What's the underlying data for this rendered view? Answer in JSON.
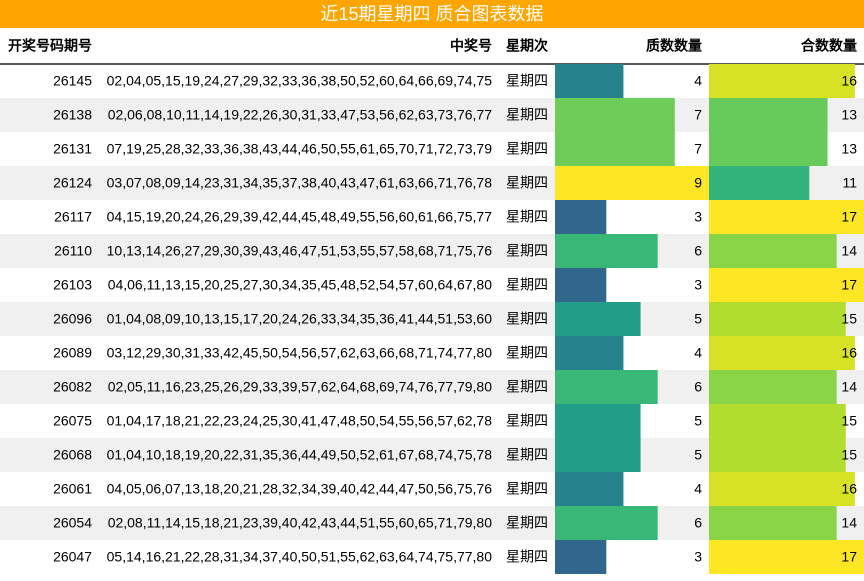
{
  "title": "近15期星期四 质合图表数据",
  "header": [
    "开奖号码期号",
    "中奖号",
    "星期次",
    "质数数量",
    "合数数量"
  ],
  "rows": [
    [
      "26145",
      "02,04,05,15,19,24,27,29,32,33,36,38,50,52,60,64,66,69,74,75",
      "星期四",
      4,
      16
    ],
    [
      "26138",
      "02,06,08,10,11,14,19,22,26,30,31,33,47,53,56,62,63,73,76,77",
      "星期四",
      7,
      13
    ],
    [
      "26131",
      "07,19,25,28,32,33,36,38,43,44,46,50,55,61,65,70,71,72,73,79",
      "星期四",
      7,
      13
    ],
    [
      "26124",
      "03,07,08,09,14,23,31,34,35,37,38,40,43,47,61,63,66,71,76,78",
      "星期四",
      9,
      11
    ],
    [
      "26117",
      "04,15,19,20,24,26,29,39,42,44,45,48,49,55,56,60,61,66,75,77",
      "星期四",
      3,
      17
    ],
    [
      "26110",
      "10,13,14,26,27,29,30,39,43,46,47,51,53,55,57,58,68,71,75,76",
      "星期四",
      6,
      14
    ],
    [
      "26103",
      "04,06,11,13,15,20,25,27,30,34,35,45,48,52,54,57,60,64,67,80",
      "星期四",
      3,
      17
    ],
    [
      "26096",
      "01,04,08,09,10,13,15,17,20,24,26,33,34,35,36,41,44,51,53,60",
      "星期四",
      5,
      15
    ],
    [
      "26089",
      "03,12,29,30,31,33,42,45,50,54,56,57,62,63,66,68,71,74,77,80",
      "星期四",
      4,
      16
    ],
    [
      "26082",
      "02,05,11,16,23,25,26,29,33,39,57,62,64,68,69,74,76,77,79,80",
      "星期四",
      6,
      14
    ],
    [
      "26075",
      "01,04,17,18,21,22,23,24,25,30,41,47,48,50,54,55,56,57,62,78",
      "星期四",
      5,
      15
    ],
    [
      "26068",
      "01,04,10,18,19,20,22,31,35,36,44,49,50,52,61,67,68,74,75,78",
      "星期四",
      5,
      15
    ],
    [
      "26061",
      "04,05,06,07,13,18,20,21,28,32,34,39,40,42,44,47,50,56,75,76",
      "星期四",
      4,
      16
    ],
    [
      "26054",
      "02,08,11,14,15,18,21,23,39,40,42,43,44,51,55,60,65,71,79,80",
      "星期四",
      6,
      14
    ],
    [
      "26047",
      "05,14,16,21,22,28,31,34,37,40,50,51,55,62,63,64,74,75,77,80",
      "星期四",
      3,
      17
    ]
  ]
}
